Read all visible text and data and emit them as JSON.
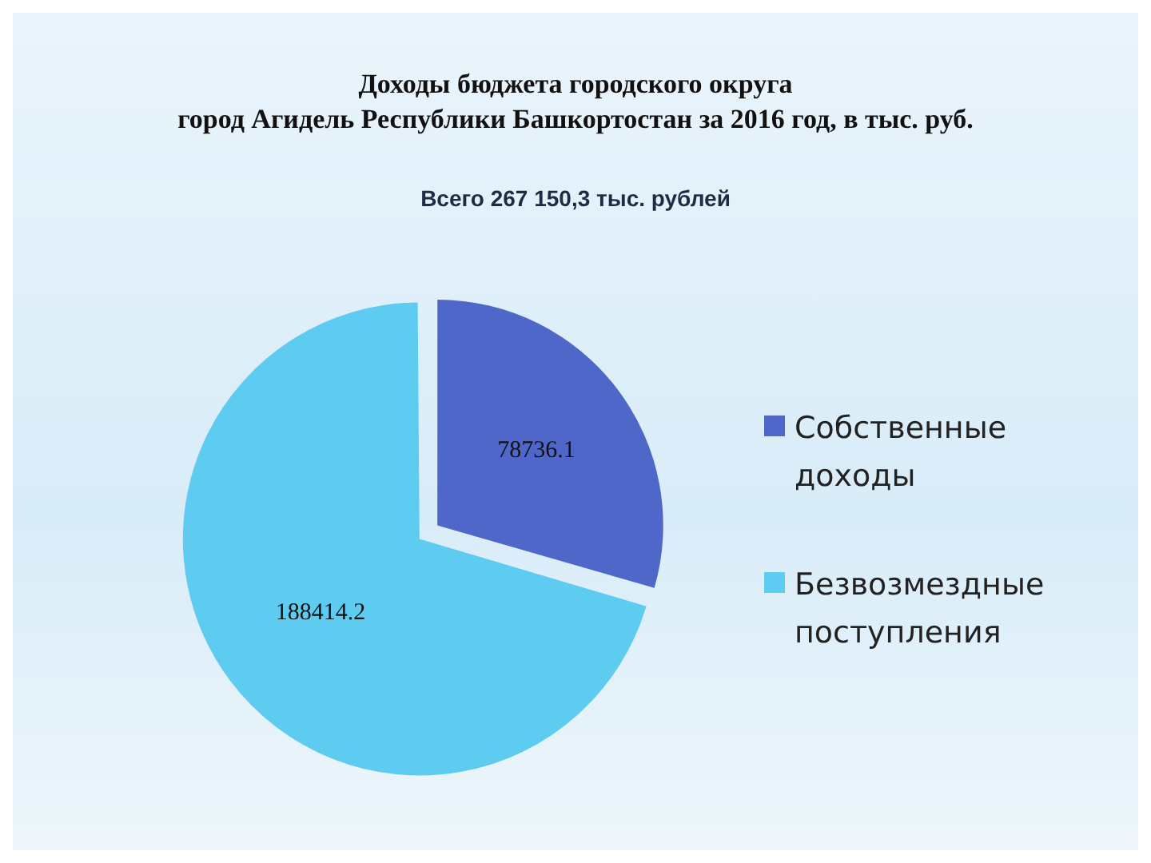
{
  "chart_data": {
    "type": "pie",
    "title": "Доходы бюджета городского округа\nгород Агидель Республики Башкортостан за 2016 год, в тыс. руб.",
    "subtitle": "Всего 267 150,3 тыс. рублей",
    "categories": [
      "Собственные доходы",
      "Безвозмездные поступления"
    ],
    "values": [
      78736.1,
      188414.2
    ],
    "colors": [
      "#4f67c8",
      "#5ecbf0"
    ],
    "data_labels": true,
    "legend": "right"
  }
}
